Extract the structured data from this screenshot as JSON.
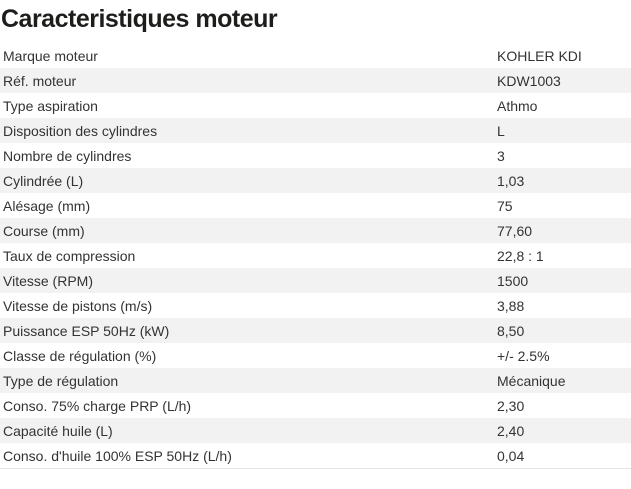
{
  "page": {
    "title": "Caracteristiques moteur"
  },
  "table": {
    "rows": [
      {
        "label": "Marque moteur",
        "value": "KOHLER KDI"
      },
      {
        "label": "Réf. moteur",
        "value": "KDW1003"
      },
      {
        "label": "Type aspiration",
        "value": "Athmo"
      },
      {
        "label": "Disposition des cylindres",
        "value": "L"
      },
      {
        "label": "Nombre de cylindres",
        "value": "3"
      },
      {
        "label": "Cylindrée (L)",
        "value": "1,03"
      },
      {
        "label": "Alésage (mm)",
        "value": "75"
      },
      {
        "label": "Course (mm)",
        "value": "77,60"
      },
      {
        "label": "Taux de compression",
        "value": "22,8 : 1"
      },
      {
        "label": "Vitesse (RPM)",
        "value": "1500"
      },
      {
        "label": "Vitesse de pistons (m/s)",
        "value": "3,88"
      },
      {
        "label": "Puissance ESP 50Hz (kW)",
        "value": "8,50"
      },
      {
        "label": "Classe de régulation (%)",
        "value": "+/- 2.5%"
      },
      {
        "label": "Type de régulation",
        "value": "Mécanique"
      },
      {
        "label": "Conso. 75% charge PRP (L/h)",
        "value": "2,30"
      },
      {
        "label": "Capacité huile (L)",
        "value": "2,40"
      },
      {
        "label": "Conso. d'huile 100% ESP 50Hz (L/h)",
        "value": "0,04"
      }
    ]
  },
  "colors": {
    "row_alt_background": "#f2f2f2",
    "body_text": "#333333",
    "title_text": "#1d1d1b",
    "table_bottom_border": "#e4e4e4"
  }
}
